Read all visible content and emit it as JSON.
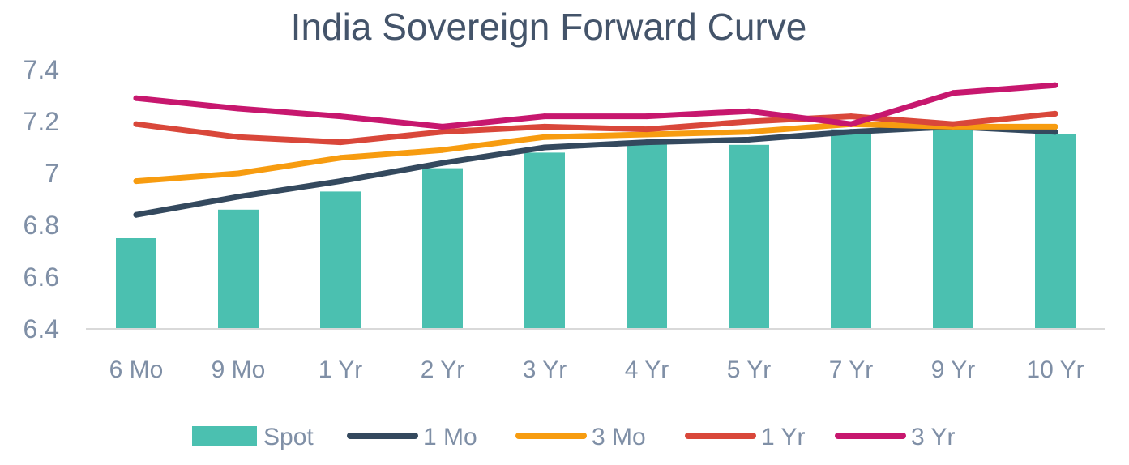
{
  "chart_data": {
    "type": "bar",
    "title": "India Sovereign Forward Curve",
    "categories": [
      "6 Mo",
      "9 Mo",
      "1 Yr",
      "2 Yr",
      "3 Yr",
      "4 Yr",
      "5 Yr",
      "7 Yr",
      "9 Yr",
      "10 Yr"
    ],
    "yticks": [
      "7.4",
      "7.2",
      "7",
      "6.8",
      "6.6",
      "6.4"
    ],
    "ylim": [
      6.4,
      7.4
    ],
    "grid": false,
    "legend_position": "bottom",
    "series": [
      {
        "name": "Spot",
        "kind": "bar",
        "color": "#4BC0B0",
        "values": [
          6.75,
          6.86,
          6.93,
          7.02,
          7.08,
          7.12,
          7.11,
          7.17,
          7.17,
          7.15
        ]
      },
      {
        "name": "1 Mo",
        "kind": "line",
        "color": "#34495E",
        "values": [
          6.84,
          6.91,
          6.97,
          7.04,
          7.1,
          7.12,
          7.13,
          7.16,
          7.18,
          7.16
        ]
      },
      {
        "name": "3 Mo",
        "kind": "line",
        "color": "#F79C10",
        "values": [
          6.97,
          7.0,
          7.06,
          7.09,
          7.14,
          7.15,
          7.16,
          7.19,
          7.18,
          7.18
        ]
      },
      {
        "name": "1 Yr",
        "kind": "line",
        "color": "#D9473A",
        "values": [
          7.19,
          7.14,
          7.12,
          7.16,
          7.18,
          7.17,
          7.2,
          7.22,
          7.19,
          7.23
        ]
      },
      {
        "name": "3 Yr",
        "kind": "line",
        "color": "#C7176E",
        "values": [
          7.29,
          7.25,
          7.22,
          7.18,
          7.22,
          7.22,
          7.24,
          7.19,
          7.31,
          7.34
        ]
      }
    ]
  }
}
